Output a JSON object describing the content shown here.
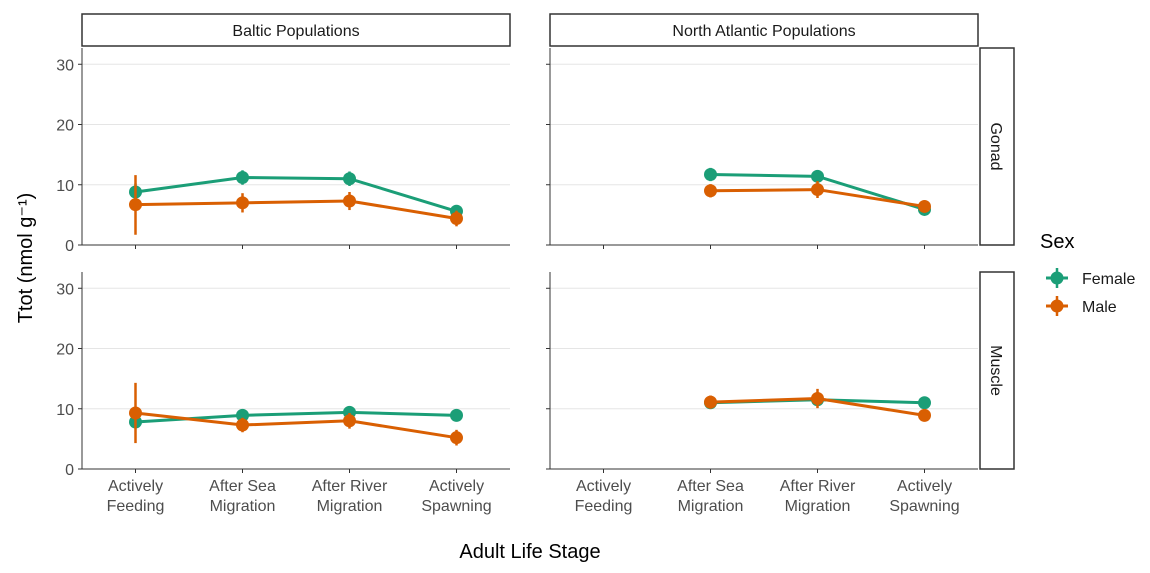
{
  "figure": {
    "ylabel": "Ttot (nmol g⁻¹)",
    "xlabel": "Adult Life Stage",
    "legend_title": "Sex",
    "legend": [
      {
        "name": "Female",
        "color": "#1b9e77"
      },
      {
        "name": "Male",
        "color": "#d95f02"
      }
    ],
    "columns": [
      "Baltic Populations",
      "North Atlantic Populations"
    ],
    "rows": [
      "Gonad",
      "Muscle"
    ],
    "categories": [
      "Actively\nFeeding",
      "After Sea\nMigration",
      "After River\nMigration",
      "Actively\nSpawning"
    ],
    "ylim": [
      0,
      32.7
    ],
    "yticks": [
      0,
      10,
      20,
      30
    ],
    "grid": true
  },
  "chart_data": [
    {
      "type": "line",
      "series": [
        {
          "values": [
            8.8,
            11.2,
            11.0,
            5.6
          ],
          "lower": [
            7.5,
            10.0,
            9.8,
            4.6
          ],
          "upper": [
            10.2,
            12.4,
            12.2,
            6.6
          ]
        },
        {
          "values": [
            6.7,
            7.0,
            7.3,
            4.4
          ],
          "lower": [
            1.7,
            5.4,
            5.8,
            3.1
          ],
          "upper": [
            11.6,
            8.6,
            8.8,
            5.7
          ]
        }
      ]
    },
    {
      "type": "line",
      "series": [
        {
          "values": [
            null,
            11.7,
            11.4,
            5.9
          ],
          "lower": [
            null,
            10.6,
            10.6,
            5.1
          ],
          "upper": [
            null,
            12.8,
            12.2,
            6.7
          ]
        },
        {
          "values": [
            null,
            9.0,
            9.2,
            6.4
          ],
          "lower": [
            null,
            7.9,
            7.8,
            5.8
          ],
          "upper": [
            null,
            10.1,
            10.6,
            7.0
          ]
        }
      ]
    },
    {
      "type": "line",
      "series": [
        {
          "values": [
            7.8,
            8.9,
            9.4,
            8.9
          ],
          "lower": [
            6.8,
            8.0,
            8.4,
            7.9
          ],
          "upper": [
            8.8,
            9.8,
            10.4,
            9.9
          ]
        },
        {
          "values": [
            9.3,
            7.3,
            8.0,
            5.2
          ],
          "lower": [
            4.3,
            6.1,
            6.7,
            3.9
          ],
          "upper": [
            14.3,
            8.5,
            9.3,
            6.5
          ]
        }
      ]
    },
    {
      "type": "line",
      "series": [
        {
          "values": [
            null,
            11.0,
            11.5,
            11.0
          ],
          "lower": [
            null,
            10.3,
            10.8,
            10.1
          ],
          "upper": [
            null,
            11.7,
            12.2,
            11.9
          ]
        },
        {
          "values": [
            null,
            11.1,
            11.7,
            8.9
          ],
          "lower": [
            null,
            10.0,
            10.1,
            7.9
          ],
          "upper": [
            null,
            12.2,
            13.3,
            9.9
          ]
        }
      ]
    }
  ]
}
